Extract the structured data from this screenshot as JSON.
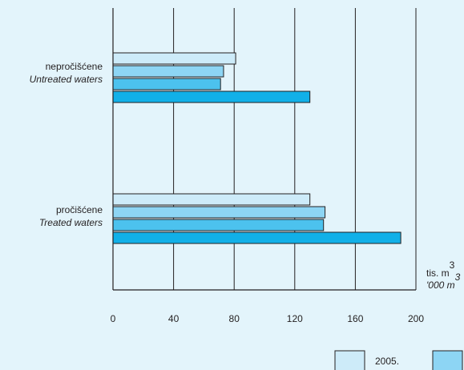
{
  "chart_data": {
    "type": "bar",
    "orientation": "horizontal",
    "title": "",
    "categories": [
      {
        "line1": "nepročišćene",
        "line2": "Untreated waters"
      },
      {
        "line1": "pročišćene",
        "line2": "Treated waters"
      }
    ],
    "series": [
      {
        "name": "2005.",
        "color": "#cdebf9",
        "values": [
          81,
          130
        ]
      },
      {
        "color": "#8dd5f4",
        "values": [
          73,
          140
        ]
      },
      {
        "color": "#4cc2ee",
        "values": [
          71,
          139
        ]
      },
      {
        "color": "#11b0e8",
        "values": [
          130,
          190
        ]
      }
    ],
    "xlim": [
      0,
      200
    ],
    "xticks": [
      "0",
      "40",
      "80",
      "120",
      "160",
      "200"
    ],
    "unit_label": {
      "line1": "tis. m",
      "line1_sup": "3",
      "line2": "'000 m",
      "line2_sup": "3"
    },
    "grid": true,
    "legend_position": "bottom-right"
  }
}
